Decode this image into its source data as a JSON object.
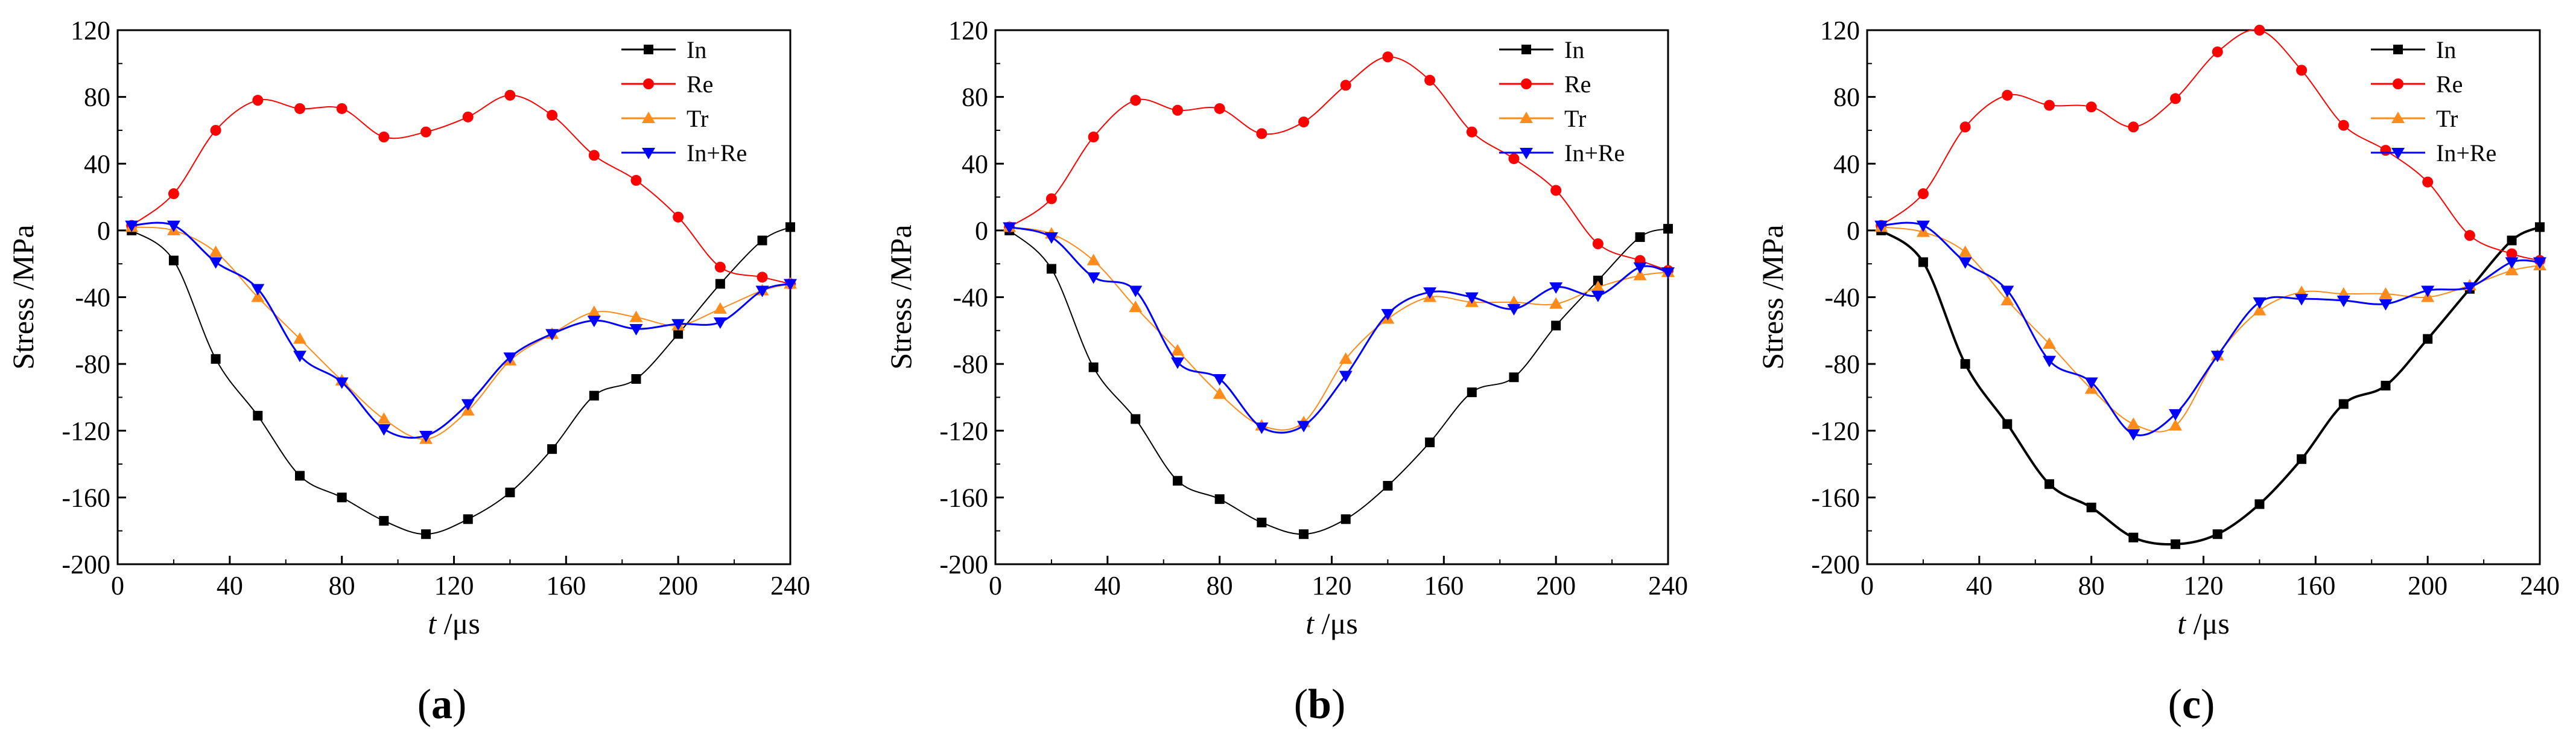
{
  "chart_data": [
    {
      "type": "line",
      "panel_label": "a",
      "xlabel_italic": "t",
      "xlabel_unit": " /μs",
      "ylabel": "Stress /MPa",
      "xlim": [
        0,
        240
      ],
      "ylim": [
        -200,
        120
      ],
      "xticks": [
        "0",
        "40",
        "80",
        "120",
        "160",
        "200",
        "240"
      ],
      "yticks": [
        "120",
        "80",
        "40",
        "0",
        "-40",
        "-80",
        "-120",
        "-160",
        "-200"
      ],
      "grid": false,
      "legend_position": "top-right",
      "series": [
        {
          "name": "In",
          "color": "#000000",
          "marker": "square",
          "points": [
            [
              5,
              0
            ],
            [
              20,
              -18
            ],
            [
              35,
              -77
            ],
            [
              50,
              -111
            ],
            [
              65,
              -147
            ],
            [
              80,
              -160
            ],
            [
              95,
              -174
            ],
            [
              110,
              -182
            ],
            [
              125,
              -173
            ],
            [
              140,
              -157
            ],
            [
              155,
              -131
            ],
            [
              170,
              -99
            ],
            [
              185,
              -89
            ],
            [
              200,
              -62
            ],
            [
              215,
              -32
            ],
            [
              230,
              -6
            ],
            [
              240,
              2
            ]
          ]
        },
        {
          "name": "Re",
          "color": "#ff0000",
          "marker": "circle",
          "points": [
            [
              5,
              3
            ],
            [
              20,
              22
            ],
            [
              35,
              60
            ],
            [
              50,
              78
            ],
            [
              65,
              73
            ],
            [
              80,
              73
            ],
            [
              95,
              56
            ],
            [
              110,
              59
            ],
            [
              125,
              68
            ],
            [
              140,
              81
            ],
            [
              155,
              69
            ],
            [
              170,
              45
            ],
            [
              185,
              30
            ],
            [
              200,
              8
            ],
            [
              215,
              -22
            ],
            [
              230,
              -28
            ],
            [
              240,
              -32
            ]
          ]
        },
        {
          "name": "Tr",
          "color": "#ff8c1a",
          "marker": "triangle-up",
          "points": [
            [
              5,
              2
            ],
            [
              20,
              0
            ],
            [
              35,
              -13
            ],
            [
              50,
              -40
            ],
            [
              65,
              -65
            ],
            [
              80,
              -90
            ],
            [
              95,
              -113
            ],
            [
              110,
              -125
            ],
            [
              125,
              -108
            ],
            [
              140,
              -78
            ],
            [
              155,
              -62
            ],
            [
              170,
              -49
            ],
            [
              185,
              -52
            ],
            [
              200,
              -57
            ],
            [
              215,
              -47
            ],
            [
              230,
              -36
            ],
            [
              240,
              -32
            ]
          ]
        },
        {
          "name": "In+Re",
          "color": "#0000ff",
          "marker": "triangle-down",
          "points": [
            [
              5,
              3
            ],
            [
              20,
              3
            ],
            [
              35,
              -19
            ],
            [
              50,
              -35
            ],
            [
              65,
              -75
            ],
            [
              80,
              -91
            ],
            [
              95,
              -119
            ],
            [
              110,
              -123
            ],
            [
              125,
              -104
            ],
            [
              140,
              -76
            ],
            [
              155,
              -62
            ],
            [
              170,
              -54
            ],
            [
              185,
              -59
            ],
            [
              200,
              -56
            ],
            [
              215,
              -55
            ],
            [
              230,
              -36
            ],
            [
              240,
              -32
            ]
          ]
        }
      ]
    },
    {
      "type": "line",
      "panel_label": "b",
      "xlabel_italic": "t",
      "xlabel_unit": " /μs",
      "ylabel": "Stress /MPa",
      "xlim": [
        0,
        240
      ],
      "ylim": [
        -200,
        120
      ],
      "xticks": [
        "0",
        "40",
        "80",
        "120",
        "160",
        "200",
        "240"
      ],
      "yticks": [
        "120",
        "80",
        "40",
        "0",
        "-40",
        "-80",
        "-120",
        "-160",
        "-200"
      ],
      "grid": false,
      "legend_position": "top-right",
      "series": [
        {
          "name": "In",
          "color": "#000000",
          "marker": "square",
          "points": [
            [
              5,
              0
            ],
            [
              20,
              -23
            ],
            [
              35,
              -82
            ],
            [
              50,
              -113
            ],
            [
              65,
              -150
            ],
            [
              80,
              -161
            ],
            [
              95,
              -175
            ],
            [
              110,
              -182
            ],
            [
              125,
              -173
            ],
            [
              140,
              -153
            ],
            [
              155,
              -127
            ],
            [
              170,
              -97
            ],
            [
              185,
              -88
            ],
            [
              200,
              -57
            ],
            [
              215,
              -30
            ],
            [
              230,
              -4
            ],
            [
              240,
              1
            ]
          ]
        },
        {
          "name": "Re",
          "color": "#ff0000",
          "marker": "circle",
          "points": [
            [
              5,
              2
            ],
            [
              20,
              19
            ],
            [
              35,
              56
            ],
            [
              50,
              78
            ],
            [
              65,
              72
            ],
            [
              80,
              73
            ],
            [
              95,
              58
            ],
            [
              110,
              65
            ],
            [
              125,
              87
            ],
            [
              140,
              104
            ],
            [
              155,
              90
            ],
            [
              170,
              59
            ],
            [
              185,
              43
            ],
            [
              200,
              24
            ],
            [
              215,
              -8
            ],
            [
              230,
              -18
            ],
            [
              240,
              -24
            ]
          ]
        },
        {
          "name": "Tr",
          "color": "#ff8c1a",
          "marker": "triangle-up",
          "points": [
            [
              5,
              2
            ],
            [
              20,
              -2
            ],
            [
              35,
              -18
            ],
            [
              50,
              -46
            ],
            [
              65,
              -72
            ],
            [
              80,
              -98
            ],
            [
              95,
              -117
            ],
            [
              110,
              -115
            ],
            [
              125,
              -77
            ],
            [
              140,
              -53
            ],
            [
              155,
              -40
            ],
            [
              170,
              -43
            ],
            [
              185,
              -43
            ],
            [
              200,
              -44
            ],
            [
              215,
              -34
            ],
            [
              230,
              -27
            ],
            [
              240,
              -25
            ]
          ]
        },
        {
          "name": "In+Re",
          "color": "#0000ff",
          "marker": "triangle-down",
          "points": [
            [
              5,
              2
            ],
            [
              20,
              -4
            ],
            [
              35,
              -28
            ],
            [
              50,
              -36
            ],
            [
              65,
              -79
            ],
            [
              80,
              -89
            ],
            [
              95,
              -118
            ],
            [
              110,
              -117
            ],
            [
              125,
              -87
            ],
            [
              140,
              -50
            ],
            [
              155,
              -37
            ],
            [
              170,
              -40
            ],
            [
              185,
              -47
            ],
            [
              200,
              -34
            ],
            [
              215,
              -39
            ],
            [
              230,
              -22
            ],
            [
              240,
              -25
            ]
          ]
        }
      ]
    },
    {
      "type": "line",
      "panel_label": "c",
      "xlabel_italic": "t",
      "xlabel_unit": " /μs",
      "ylabel": "Stress /MPa",
      "xlim": [
        0,
        240
      ],
      "ylim": [
        -200,
        120
      ],
      "xticks": [
        "0",
        "40",
        "80",
        "120",
        "160",
        "200",
        "240"
      ],
      "yticks": [
        "120",
        "80",
        "40",
        "0",
        "-40",
        "-80",
        "-120",
        "-160",
        "-200"
      ],
      "grid": false,
      "legend_position": "top-right",
      "series": [
        {
          "name": "In",
          "color": "#000000",
          "marker": "square",
          "points": [
            [
              5,
              0
            ],
            [
              20,
              -19
            ],
            [
              35,
              -80
            ],
            [
              50,
              -116
            ],
            [
              65,
              -152
            ],
            [
              80,
              -166
            ],
            [
              95,
              -184
            ],
            [
              110,
              -188
            ],
            [
              125,
              -182
            ],
            [
              140,
              -164
            ],
            [
              155,
              -137
            ],
            [
              170,
              -104
            ],
            [
              185,
              -93
            ],
            [
              200,
              -65
            ],
            [
              215,
              -35
            ],
            [
              230,
              -6
            ],
            [
              240,
              2
            ]
          ]
        },
        {
          "name": "Re",
          "color": "#ff0000",
          "marker": "circle",
          "points": [
            [
              5,
              3
            ],
            [
              20,
              22
            ],
            [
              35,
              62
            ],
            [
              50,
              81
            ],
            [
              65,
              75
            ],
            [
              80,
              74
            ],
            [
              95,
              62
            ],
            [
              110,
              79
            ],
            [
              125,
              107
            ],
            [
              140,
              120
            ],
            [
              155,
              96
            ],
            [
              170,
              63
            ],
            [
              185,
              48
            ],
            [
              200,
              29
            ],
            [
              215,
              -3
            ],
            [
              230,
              -14
            ],
            [
              240,
              -18
            ]
          ]
        },
        {
          "name": "Tr",
          "color": "#ff8c1a",
          "marker": "triangle-up",
          "points": [
            [
              5,
              2
            ],
            [
              20,
              -1
            ],
            [
              35,
              -13
            ],
            [
              50,
              -42
            ],
            [
              65,
              -68
            ],
            [
              80,
              -95
            ],
            [
              95,
              -116
            ],
            [
              110,
              -117
            ],
            [
              125,
              -75
            ],
            [
              140,
              -48
            ],
            [
              155,
              -37
            ],
            [
              170,
              -38
            ],
            [
              185,
              -38
            ],
            [
              200,
              -40
            ],
            [
              215,
              -33
            ],
            [
              230,
              -24
            ],
            [
              240,
              -21
            ]
          ]
        },
        {
          "name": "In+Re",
          "color": "#0000ff",
          "marker": "triangle-down",
          "points": [
            [
              5,
              3
            ],
            [
              20,
              3
            ],
            [
              35,
              -19
            ],
            [
              50,
              -36
            ],
            [
              65,
              -78
            ],
            [
              80,
              -91
            ],
            [
              95,
              -122
            ],
            [
              110,
              -110
            ],
            [
              125,
              -75
            ],
            [
              140,
              -43
            ],
            [
              155,
              -41
            ],
            [
              170,
              -42
            ],
            [
              185,
              -44
            ],
            [
              200,
              -36
            ],
            [
              215,
              -34
            ],
            [
              230,
              -19
            ],
            [
              240,
              -19
            ]
          ]
        }
      ]
    }
  ]
}
